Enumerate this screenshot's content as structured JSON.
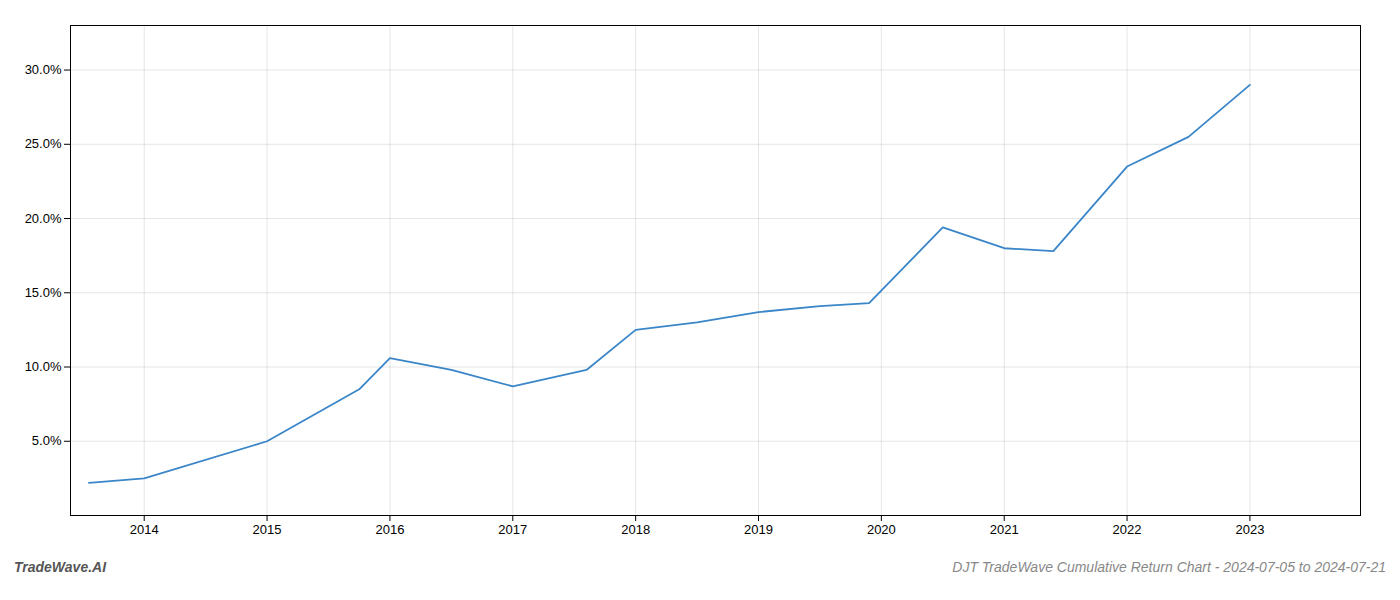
{
  "chart_data": {
    "type": "line",
    "x": [
      2013.55,
      2014.0,
      2015.0,
      2015.75,
      2016.0,
      2016.5,
      2017.0,
      2017.6,
      2018.0,
      2018.5,
      2019.0,
      2019.5,
      2019.9,
      2020.5,
      2021.0,
      2021.4,
      2022.0,
      2022.5,
      2023.0
    ],
    "values": [
      2.2,
      2.5,
      5.0,
      8.5,
      10.6,
      9.8,
      8.7,
      9.8,
      12.5,
      13.0,
      13.7,
      14.1,
      14.3,
      19.4,
      18.0,
      17.8,
      23.5,
      25.5,
      29.0
    ],
    "color": "#3a86c8",
    "xlim": [
      2013.4,
      2023.9
    ],
    "xticks": [
      2014,
      2015,
      2016,
      2017,
      2018,
      2019,
      2020,
      2021,
      2022,
      2023
    ],
    "ylim": [
      0,
      33
    ],
    "yticks": [
      {
        "value": 5.0,
        "label": "5.0%"
      },
      {
        "value": 10.0,
        "label": "10.0%"
      },
      {
        "value": 15.0,
        "label": "15.0%"
      },
      {
        "value": 20.0,
        "label": "20.0%"
      },
      {
        "value": 25.0,
        "label": "25.0%"
      },
      {
        "value": 30.0,
        "label": "30.0%"
      }
    ],
    "grid": true,
    "annotations": [
      "TradeWave.AI",
      "DJT TradeWave Cumulative Return Chart - 2024-07-05 to 2024-07-21"
    ]
  }
}
